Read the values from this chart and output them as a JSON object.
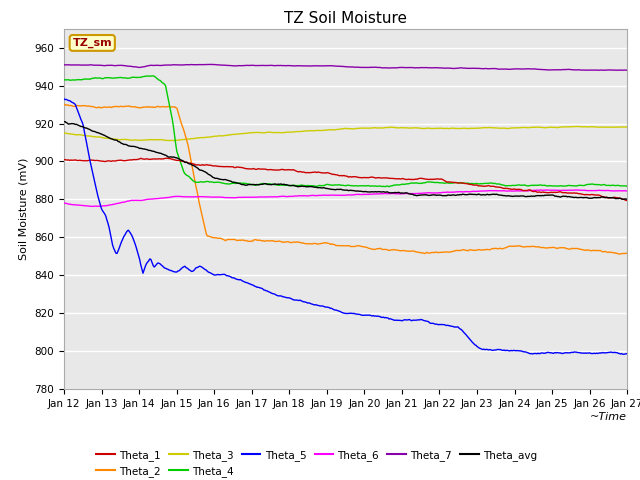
{
  "title": "TZ Soil Moisture",
  "xlabel": "~Time",
  "ylabel": "Soil Moisture (mV)",
  "ylim": [
    780,
    970
  ],
  "xlim": [
    0,
    15
  ],
  "yticks": [
    780,
    800,
    820,
    840,
    860,
    880,
    900,
    920,
    940,
    960
  ],
  "xtick_labels": [
    "Jan 12",
    "Jan 13",
    "Jan 14",
    "Jan 15",
    "Jan 16",
    "Jan 17",
    "Jan 18",
    "Jan 19",
    "Jan 20",
    "Jan 21",
    "Jan 22",
    "Jan 23",
    "Jan 24",
    "Jan 25",
    "Jan 26",
    "Jan 27"
  ],
  "colors": {
    "Theta_1": "#cc0000",
    "Theta_2": "#ff8800",
    "Theta_3": "#cccc00",
    "Theta_4": "#00cc00",
    "Theta_5": "#0000ff",
    "Theta_6": "#ff00ff",
    "Theta_7": "#8800aa",
    "Theta_avg": "#000000"
  },
  "background_color": "#e8e8e8",
  "grid_color": "#ffffff",
  "title_fontsize": 11,
  "label_fontsize": 8,
  "tick_fontsize": 7.5,
  "legend_label": "TZ_sm",
  "legend_box_color": "#ffffcc",
  "legend_box_edge": "#cc9900",
  "linewidth": 1.0
}
